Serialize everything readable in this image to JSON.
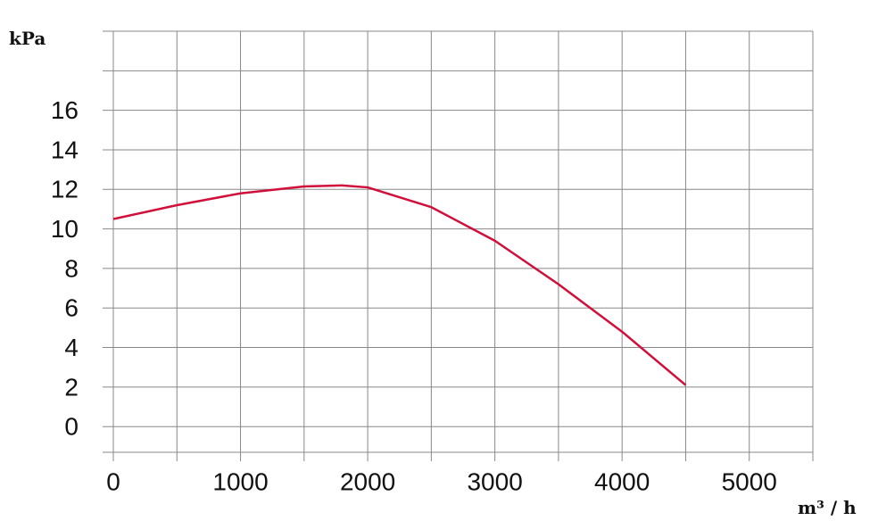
{
  "chart_data": {
    "type": "line",
    "y_label": "kPa",
    "x_label": "m³ / h",
    "x": [
      0,
      500,
      1000,
      1500,
      1800,
      2000,
      2500,
      3000,
      3500,
      4000,
      4500
    ],
    "series": [
      {
        "color": "#d0103a",
        "values": [
          10.5,
          11.2,
          11.8,
          12.15,
          12.2,
          12.1,
          11.1,
          9.4,
          7.2,
          4.8,
          2.1
        ]
      }
    ],
    "xlim": [
      0,
      5500
    ],
    "ylim": [
      -1.3,
      20
    ],
    "xticks": [
      0,
      1000,
      2000,
      3000,
      4000,
      5000
    ],
    "yticks": [
      0,
      2,
      4,
      6,
      8,
      10,
      12,
      14,
      16
    ],
    "xgrid": [
      0,
      500,
      1000,
      1500,
      2000,
      2500,
      3000,
      3500,
      4000,
      4500,
      5000,
      5500
    ],
    "ygrid": [
      0,
      2,
      4,
      6,
      8,
      10,
      12,
      14,
      16,
      18,
      20
    ],
    "grid": true
  }
}
